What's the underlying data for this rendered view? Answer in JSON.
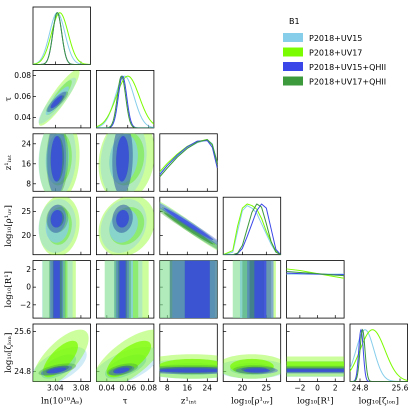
{
  "chart_data": {
    "type": "corner",
    "legend": {
      "title": "B1",
      "placement": "top-right",
      "entries": [
        {
          "label": "P2018+UV15",
          "color": "#87CEEB"
        },
        {
          "label": "P2018+UV17",
          "color": "#7CFC00"
        },
        {
          "label": "P2018+UV15+QHII",
          "color": "#3A46E8"
        },
        {
          "label": "P2018+UV17+QHII",
          "color": "#3C9A3C"
        }
      ]
    },
    "parameters": [
      {
        "key": "lnAs",
        "label": "ln(10¹⁰Aₛ)",
        "range": [
          3.005,
          3.095
        ],
        "ticks": [
          3.04,
          3.08
        ],
        "tick_labels": [
          "3.04",
          "3.08"
        ]
      },
      {
        "key": "tau",
        "label": "τ",
        "range": [
          0.03,
          0.085
        ],
        "ticks": [
          0.04,
          0.06,
          0.08
        ],
        "tick_labels": [
          "0.04",
          "0.06",
          "0.08"
        ]
      },
      {
        "key": "zint",
        "label": "z¹ᵢₙₜ",
        "range": [
          5,
          28
        ],
        "ticks": [
          8,
          16,
          24
        ],
        "tick_labels": [
          "8",
          "16",
          "24"
        ]
      },
      {
        "key": "rhoUV",
        "label": "log₁₀[ρ¹ᵤᵥ]",
        "range": [
          16,
          28
        ],
        "ticks": [
          20,
          25
        ],
        "tick_labels": [
          "20",
          "25"
        ]
      },
      {
        "key": "R1",
        "label": "log₁₀[R¹]",
        "range": [
          -3.5,
          3
        ],
        "ticks": [
          -2,
          0,
          2
        ],
        "tick_labels": [
          "−2",
          "0",
          "2"
        ]
      },
      {
        "key": "zion",
        "label": "log₁₀[ζₗₒₙ]",
        "range": [
          24.6,
          25.75
        ],
        "ticks": [
          24.8,
          25.6
        ],
        "tick_labels": [
          "24.8",
          "25.6"
        ]
      }
    ],
    "series_colors": {
      "UV15": "#87CEEB",
      "UV17": "#7CFC00",
      "UV15_QHII": "#3A46E8",
      "UV17_QHII": "#3C9A3C"
    },
    "marginals": {
      "lnAs": [
        {
          "series": "UV15",
          "mean": 3.043,
          "sd": 0.012
        },
        {
          "series": "UV17",
          "mean": 3.047,
          "sd": 0.013
        },
        {
          "series": "UV15_QHII",
          "mean": 3.043,
          "sd": 0.007
        },
        {
          "series": "UV17_QHII",
          "mean": 3.043,
          "sd": 0.007
        }
      ],
      "tau": [
        {
          "series": "UV15",
          "mean": 0.057,
          "sd": 0.009
        },
        {
          "series": "UV17",
          "mean": 0.06,
          "sd": 0.011
        },
        {
          "series": "UV15_QHII",
          "mean": 0.055,
          "sd": 0.004
        },
        {
          "series": "UV17_QHII",
          "mean": 0.054,
          "sd": 0.004
        }
      ]
    },
    "marginal_curves": {
      "zint": [
        {
          "series": "UV15",
          "x": [
            5,
            8,
            12,
            16,
            20,
            24,
            26,
            28
          ],
          "y": [
            0.35,
            0.5,
            0.68,
            0.83,
            0.94,
            0.99,
            0.92,
            0.55
          ]
        },
        {
          "series": "UV17",
          "x": [
            5,
            8,
            12,
            16,
            20,
            24,
            26,
            28
          ],
          "y": [
            0.38,
            0.54,
            0.72,
            0.87,
            0.96,
            1.0,
            0.9,
            0.5
          ]
        },
        {
          "series": "UV15_QHII",
          "x": [
            5,
            8,
            12,
            16,
            20,
            24,
            26,
            28
          ],
          "y": [
            0.32,
            0.5,
            0.7,
            0.86,
            0.97,
            0.98,
            0.85,
            0.45
          ]
        },
        {
          "series": "UV17_QHII",
          "x": [
            5,
            8,
            12,
            16,
            20,
            24,
            26,
            28
          ],
          "y": [
            0.28,
            0.45,
            0.66,
            0.83,
            0.95,
            1.0,
            0.9,
            0.55
          ]
        }
      ],
      "rhoUV": [
        {
          "series": "UV15",
          "x": [
            16,
            18,
            19,
            20,
            21,
            22,
            23,
            24,
            25,
            26,
            27,
            28
          ],
          "y": [
            0.0,
            0.05,
            0.45,
            0.85,
            0.95,
            0.9,
            0.8,
            0.6,
            0.4,
            0.2,
            0.05,
            0.0
          ]
        },
        {
          "series": "UV17",
          "x": [
            16,
            18,
            19,
            20,
            21,
            22,
            23,
            24,
            25,
            26,
            27,
            28
          ],
          "y": [
            0.0,
            0.08,
            0.55,
            0.9,
            0.98,
            0.95,
            0.88,
            0.7,
            0.45,
            0.25,
            0.07,
            0.0
          ]
        },
        {
          "series": "UV15_QHII",
          "x": [
            16,
            18,
            19,
            20,
            21,
            22,
            23,
            24,
            25,
            26,
            27,
            28
          ],
          "y": [
            0.0,
            0.0,
            0.02,
            0.12,
            0.35,
            0.6,
            0.85,
            0.98,
            0.9,
            0.5,
            0.1,
            0.0
          ]
        },
        {
          "series": "UV17_QHII",
          "x": [
            16,
            18,
            19,
            20,
            21,
            22,
            23,
            24,
            25,
            26,
            27,
            28
          ],
          "y": [
            0.0,
            0.0,
            0.03,
            0.18,
            0.5,
            0.82,
            0.98,
            0.92,
            0.6,
            0.25,
            0.05,
            0.0
          ]
        }
      ],
      "R1": [
        {
          "series": "UV15",
          "x": [
            -3.5,
            -2,
            0,
            2,
            3
          ],
          "y": [
            0.85,
            0.85,
            0.85,
            0.85,
            0.85
          ]
        },
        {
          "series": "UV17",
          "x": [
            -3.5,
            -2,
            0,
            2,
            3
          ],
          "y": [
            0.95,
            0.92,
            0.86,
            0.8,
            0.77
          ]
        },
        {
          "series": "UV15_QHII",
          "x": [
            -3.5,
            -2,
            0,
            2,
            3
          ],
          "y": [
            0.87,
            0.86,
            0.85,
            0.84,
            0.84
          ]
        },
        {
          "series": "UV17_QHII",
          "x": [
            -3.5,
            -2,
            0,
            2,
            3
          ],
          "y": [
            0.9,
            0.88,
            0.86,
            0.83,
            0.82
          ]
        }
      ]
    },
    "marginals_late": {
      "zion": [
        {
          "series": "UV15",
          "mean": 24.9,
          "sd": 0.18
        },
        {
          "series": "UV17",
          "mean": 25.05,
          "sd": 0.25
        },
        {
          "series": "UV15_QHII",
          "mean": 24.82,
          "sd": 0.045
        },
        {
          "series": "UV17_QHII",
          "mean": 24.85,
          "sd": 0.05
        }
      ]
    },
    "contours": [
      {
        "x": "lnAs",
        "y": "tau",
        "series": "UV17",
        "cx": 3.046,
        "cy": 0.059,
        "sx": 0.013,
        "sy": 0.011,
        "rho": 0.9
      },
      {
        "x": "lnAs",
        "y": "tau",
        "series": "UV15",
        "cx": 3.043,
        "cy": 0.056,
        "sx": 0.012,
        "sy": 0.009,
        "rho": 0.9
      },
      {
        "x": "lnAs",
        "y": "tau",
        "series": "UV17_QHII",
        "cx": 3.043,
        "cy": 0.055,
        "sx": 0.007,
        "sy": 0.004,
        "rho": 0.85
      },
      {
        "x": "lnAs",
        "y": "tau",
        "series": "UV15_QHII",
        "cx": 3.042,
        "cy": 0.055,
        "sx": 0.006,
        "sy": 0.004,
        "rho": 0.85
      },
      {
        "x": "lnAs",
        "y": "zint",
        "series": "UV17",
        "cx": 3.046,
        "cy": 18,
        "sx": 0.013,
        "sy": 7,
        "rho": 0.1
      },
      {
        "x": "lnAs",
        "y": "zint",
        "series": "UV15",
        "cx": 3.043,
        "cy": 18,
        "sx": 0.012,
        "sy": 6.5,
        "rho": 0.1
      },
      {
        "x": "lnAs",
        "y": "zint",
        "series": "UV17_QHII",
        "cx": 3.043,
        "cy": 18,
        "sx": 0.007,
        "sy": 6,
        "rho": 0.05
      },
      {
        "x": "lnAs",
        "y": "zint",
        "series": "UV15_QHII",
        "cx": 3.042,
        "cy": 18,
        "sx": 0.006,
        "sy": 6,
        "rho": 0.05
      },
      {
        "x": "lnAs",
        "y": "rhoUV",
        "series": "UV17",
        "cx": 3.046,
        "cy": 22,
        "sx": 0.013,
        "sy": 2.6,
        "rho": 0.1
      },
      {
        "x": "lnAs",
        "y": "rhoUV",
        "series": "UV15",
        "cx": 3.043,
        "cy": 22,
        "sx": 0.012,
        "sy": 2.3,
        "rho": 0.1
      },
      {
        "x": "lnAs",
        "y": "rhoUV",
        "series": "UV17_QHII",
        "cx": 3.043,
        "cy": 23.5,
        "sx": 0.007,
        "sy": 1.2,
        "rho": 0.1
      },
      {
        "x": "lnAs",
        "y": "rhoUV",
        "series": "UV15_QHII",
        "cx": 3.042,
        "cy": 23.5,
        "sx": 0.006,
        "sy": 1.2,
        "rho": 0.1
      },
      {
        "x": "lnAs",
        "y": "zion",
        "series": "UV15",
        "cx": 3.045,
        "cy": 24.9,
        "sx": 0.018,
        "sy": 0.16,
        "rho": 0.6
      },
      {
        "x": "lnAs",
        "y": "zion",
        "series": "UV17",
        "cx": 3.048,
        "cy": 25.05,
        "sx": 0.018,
        "sy": 0.24,
        "rho": 0.7
      },
      {
        "x": "lnAs",
        "y": "zion",
        "series": "UV17_QHII",
        "cx": 3.043,
        "cy": 24.84,
        "sx": 0.012,
        "sy": 0.05,
        "rho": 0.6
      },
      {
        "x": "lnAs",
        "y": "zion",
        "series": "UV15_QHII",
        "cx": 3.042,
        "cy": 24.82,
        "sx": 0.01,
        "sy": 0.04,
        "rho": 0.6
      },
      {
        "x": "tau",
        "y": "zint",
        "series": "UV17",
        "cx": 0.059,
        "cy": 18,
        "sx": 0.011,
        "sy": 7,
        "rho": 0.15
      },
      {
        "x": "tau",
        "y": "zint",
        "series": "UV15",
        "cx": 0.056,
        "cy": 18,
        "sx": 0.009,
        "sy": 6.5,
        "rho": 0.15
      },
      {
        "x": "tau",
        "y": "zint",
        "series": "UV17_QHII",
        "cx": 0.055,
        "cy": 18,
        "sx": 0.004,
        "sy": 6,
        "rho": 0.1
      },
      {
        "x": "tau",
        "y": "zint",
        "series": "UV15_QHII",
        "cx": 0.055,
        "cy": 18,
        "sx": 0.004,
        "sy": 6,
        "rho": 0.1
      },
      {
        "x": "tau",
        "y": "rhoUV",
        "series": "UV17",
        "cx": 0.059,
        "cy": 22,
        "sx": 0.011,
        "sy": 2.6,
        "rho": 0.2
      },
      {
        "x": "tau",
        "y": "rhoUV",
        "series": "UV15",
        "cx": 0.056,
        "cy": 22,
        "sx": 0.009,
        "sy": 2.3,
        "rho": 0.2
      },
      {
        "x": "tau",
        "y": "rhoUV",
        "series": "UV17_QHII",
        "cx": 0.055,
        "cy": 23.5,
        "sx": 0.004,
        "sy": 1.2,
        "rho": 0.1
      },
      {
        "x": "tau",
        "y": "rhoUV",
        "series": "UV15_QHII",
        "cx": 0.055,
        "cy": 23.5,
        "sx": 0.004,
        "sy": 1.2,
        "rho": 0.1
      },
      {
        "x": "tau",
        "y": "zion",
        "series": "UV15",
        "cx": 0.058,
        "cy": 24.9,
        "sx": 0.013,
        "sy": 0.16,
        "rho": 0.6
      },
      {
        "x": "tau",
        "y": "zion",
        "series": "UV17",
        "cx": 0.061,
        "cy": 25.05,
        "sx": 0.014,
        "sy": 0.24,
        "rho": 0.7
      },
      {
        "x": "tau",
        "y": "zion",
        "series": "UV17_QHII",
        "cx": 0.055,
        "cy": 24.84,
        "sx": 0.006,
        "sy": 0.05,
        "rho": 0.5
      },
      {
        "x": "tau",
        "y": "zion",
        "series": "UV15_QHII",
        "cx": 0.054,
        "cy": 24.82,
        "sx": 0.005,
        "sy": 0.04,
        "rho": 0.5
      },
      {
        "x": "zint",
        "y": "rhoUV",
        "series": "UV17",
        "cx": 16.5,
        "cy": 22,
        "sx": 7,
        "sy": 2.6,
        "rho": -0.98
      },
      {
        "x": "zint",
        "y": "rhoUV",
        "series": "UV15",
        "cx": 16.5,
        "cy": 22,
        "sx": 6.5,
        "sy": 2.4,
        "rho": -0.98
      },
      {
        "x": "zint",
        "y": "rhoUV",
        "series": "UV17_QHII",
        "cx": 16.5,
        "cy": 21.5,
        "sx": 6.5,
        "sy": 2.2,
        "rho": -0.99
      },
      {
        "x": "zint",
        "y": "rhoUV",
        "series": "UV15_QHII",
        "cx": 16.5,
        "cy": 22.4,
        "sx": 6.5,
        "sy": 2.2,
        "rho": -0.99
      },
      {
        "x": "zint",
        "y": "zion",
        "series": "UV15",
        "cx": 18,
        "cy": 24.85,
        "sx": 9,
        "sy": 0.08,
        "rho": 0.0
      },
      {
        "x": "zint",
        "y": "zion",
        "series": "UV17",
        "cx": 18,
        "cy": 24.9,
        "sx": 9,
        "sy": 0.1,
        "rho": 0.0
      },
      {
        "x": "zint",
        "y": "zion",
        "series": "UV17_QHII",
        "cx": 18,
        "cy": 24.84,
        "sx": 9,
        "sy": 0.035,
        "rho": 0.0
      },
      {
        "x": "zint",
        "y": "zion",
        "series": "UV15_QHII",
        "cx": 18,
        "cy": 24.82,
        "sx": 9,
        "sy": 0.03,
        "rho": 0.0
      },
      {
        "x": "rhoUV",
        "y": "zion",
        "series": "UV15",
        "cx": 22,
        "cy": 24.85,
        "sx": 3,
        "sy": 0.08,
        "rho": 0.0
      },
      {
        "x": "rhoUV",
        "y": "zion",
        "series": "UV17",
        "cx": 22,
        "cy": 24.9,
        "sx": 3,
        "sy": 0.1,
        "rho": 0.0
      },
      {
        "x": "rhoUV",
        "y": "zion",
        "series": "UV17_QHII",
        "cx": 22.5,
        "cy": 24.84,
        "sx": 1.8,
        "sy": 0.035,
        "rho": 0.0
      },
      {
        "x": "rhoUV",
        "y": "zion",
        "series": "UV15_QHII",
        "cx": 23,
        "cy": 24.82,
        "sx": 1.8,
        "sy": 0.03,
        "rho": 0.0
      }
    ],
    "bands": [
      {
        "x": "lnAs",
        "y": "R1",
        "series": "UV17",
        "center": 3.046,
        "half68": 0.013,
        "half95": 0.026
      },
      {
        "x": "lnAs",
        "y": "R1",
        "series": "UV15",
        "center": 3.043,
        "half68": 0.012,
        "half95": 0.024
      },
      {
        "x": "lnAs",
        "y": "R1",
        "series": "UV17_QHII",
        "center": 3.043,
        "half68": 0.007,
        "half95": 0.013
      },
      {
        "x": "lnAs",
        "y": "R1",
        "series": "UV15_QHII",
        "center": 3.042,
        "half68": 0.005,
        "half95": 0.01
      },
      {
        "x": "tau",
        "y": "R1",
        "series": "UV17",
        "center": 0.059,
        "half68": 0.011,
        "half95": 0.021
      },
      {
        "x": "tau",
        "y": "R1",
        "series": "UV15",
        "center": 0.056,
        "half68": 0.009,
        "half95": 0.018
      },
      {
        "x": "tau",
        "y": "R1",
        "series": "UV17_QHII",
        "center": 0.055,
        "half68": 0.004,
        "half95": 0.008
      },
      {
        "x": "tau",
        "y": "R1",
        "series": "UV15_QHII",
        "center": 0.055,
        "half68": 0.003,
        "half95": 0.006
      },
      {
        "x": "zint",
        "y": "R1",
        "series": "UV17",
        "lo68": 9,
        "hi68": 27,
        "lo95": 5,
        "hi95": 28
      },
      {
        "x": "zint",
        "y": "R1",
        "series": "UV15",
        "lo68": 10,
        "hi68": 27,
        "lo95": 5,
        "hi95": 28
      },
      {
        "x": "zint",
        "y": "R1",
        "series": "UV17_QHII",
        "lo68": 15,
        "hi68": 25,
        "lo95": 9,
        "hi95": 28
      },
      {
        "x": "zint",
        "y": "R1",
        "series": "UV15_QHII",
        "lo68": 15,
        "hi68": 25,
        "lo95": 9,
        "hi95": 28
      },
      {
        "x": "rhoUV",
        "y": "R1",
        "series": "UV17",
        "lo68": 19.5,
        "hi68": 24.5,
        "lo95": 18,
        "hi95": 27
      },
      {
        "x": "rhoUV",
        "y": "R1",
        "series": "UV15",
        "lo68": 19.5,
        "hi68": 24,
        "lo95": 18,
        "hi95": 26.5
      },
      {
        "x": "rhoUV",
        "y": "R1",
        "series": "UV17_QHII",
        "lo68": 21.5,
        "hi68": 24.5,
        "lo95": 20,
        "hi95": 26
      },
      {
        "x": "rhoUV",
        "y": "R1",
        "series": "UV15_QHII",
        "lo68": 22.5,
        "hi68": 25,
        "lo95": 21,
        "hi95": 26.5
      },
      {
        "x": "R1",
        "y": "zion",
        "series": "UV15",
        "horizontal": true,
        "center": 24.85,
        "half68": 0.08,
        "half95": 0.16
      },
      {
        "x": "R1",
        "y": "zion",
        "series": "UV17",
        "horizontal": true,
        "center": 24.9,
        "half68": 0.1,
        "half95": 0.2
      },
      {
        "x": "R1",
        "y": "zion",
        "series": "UV17_QHII",
        "horizontal": true,
        "center": 24.84,
        "half68": 0.035,
        "half95": 0.07
      },
      {
        "x": "R1",
        "y": "zion",
        "series": "UV15_QHII",
        "horizontal": true,
        "center": 24.82,
        "half68": 0.03,
        "half95": 0.06
      }
    ]
  }
}
